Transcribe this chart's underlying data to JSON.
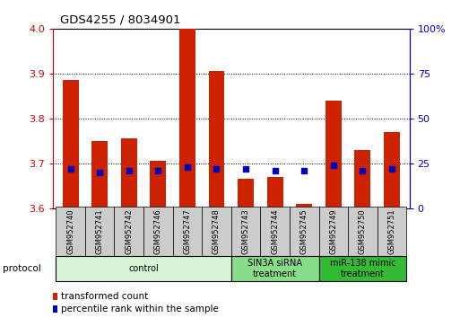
{
  "title": "GDS4255 / 8034901",
  "samples": [
    "GSM952740",
    "GSM952741",
    "GSM952742",
    "GSM952746",
    "GSM952747",
    "GSM952748",
    "GSM952743",
    "GSM952744",
    "GSM952745",
    "GSM952749",
    "GSM952750",
    "GSM952751"
  ],
  "transformed_count": [
    3.885,
    3.75,
    3.755,
    3.705,
    4.0,
    3.905,
    3.665,
    3.67,
    3.61,
    3.84,
    3.73,
    3.77
  ],
  "percentile_rank": [
    22,
    20,
    21,
    21,
    23,
    22,
    22,
    21,
    21,
    24,
    21,
    22
  ],
  "ylim_left": [
    3.6,
    4.0
  ],
  "ylim_right": [
    0,
    100
  ],
  "yticks_left": [
    3.6,
    3.7,
    3.8,
    3.9,
    4.0
  ],
  "yticks_right": [
    0,
    25,
    50,
    75,
    100
  ],
  "bar_color": "#cc2200",
  "dot_color": "#0000bb",
  "bar_width": 0.55,
  "groups": [
    {
      "label": "control",
      "start": 0,
      "end": 6,
      "color": "#d6f5d6"
    },
    {
      "label": "SIN3A siRNA\ntreatment",
      "start": 6,
      "end": 9,
      "color": "#88dd88"
    },
    {
      "label": "miR-138 mimic\ntreatment",
      "start": 9,
      "end": 12,
      "color": "#33bb33"
    }
  ],
  "legend_items": [
    {
      "label": "transformed count",
      "color": "#cc2200"
    },
    {
      "label": "percentile rank within the sample",
      "color": "#0000bb"
    }
  ],
  "grid_color": "black",
  "baseline": 3.6,
  "right_axis_color": "#0000cc",
  "left_axis_color": "#cc0000",
  "background_color": "white",
  "xticklabel_area_color": "#cccccc",
  "right_tick_label_suffix": "%"
}
